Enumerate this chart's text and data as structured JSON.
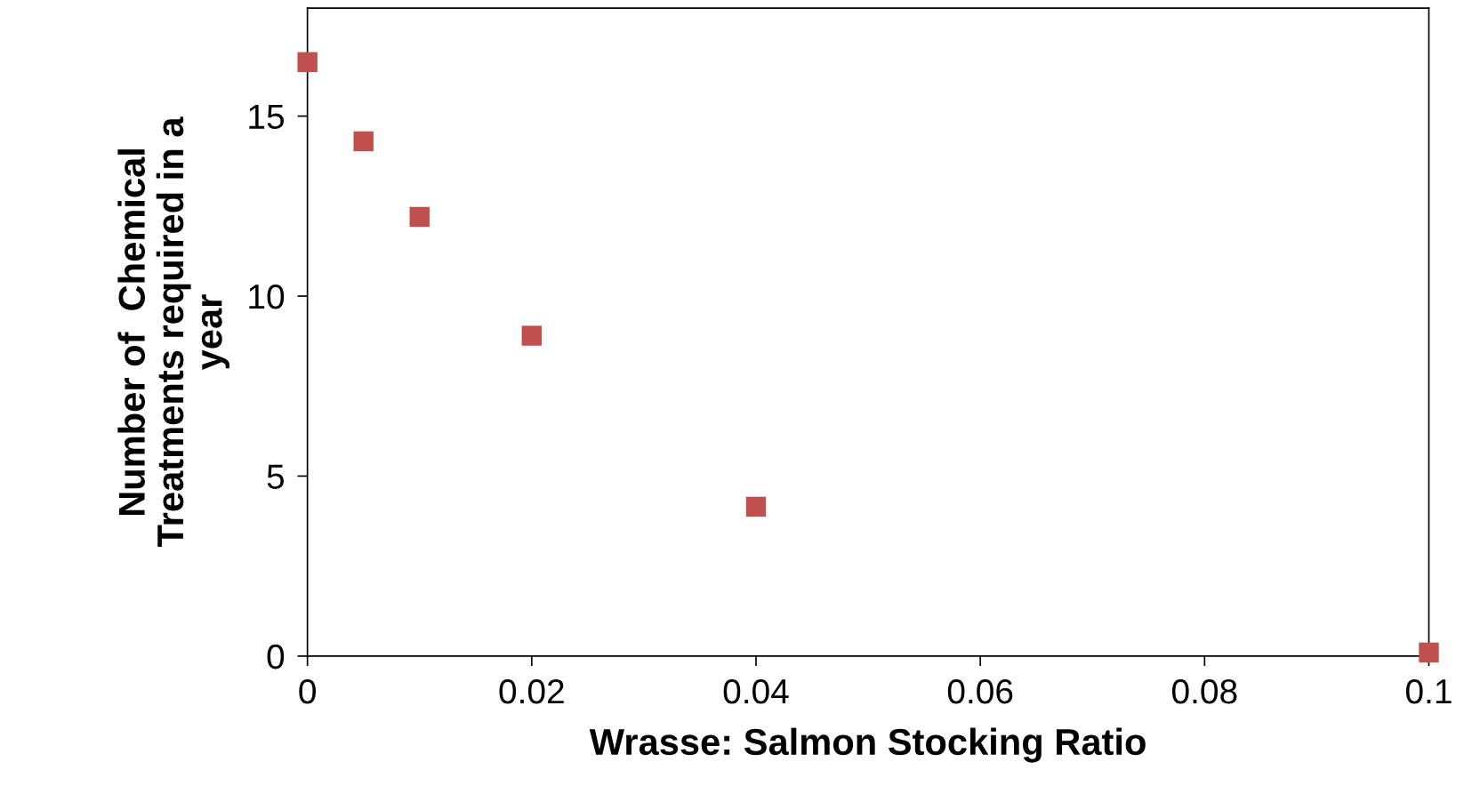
{
  "chart_data": {
    "type": "scatter",
    "xlabel": "Wrasse: Salmon Stocking Ratio",
    "ylabel": "Number of  Chemical\nTreatments required in a\nyear",
    "x": [
      0,
      0.005,
      0.01,
      0.02,
      0.04,
      0.1
    ],
    "series": [
      {
        "color": "#c0504d",
        "values": [
          16.5,
          14.3,
          12.2,
          8.9,
          4.15,
          0.1
        ]
      }
    ],
    "xlim": [
      0,
      0.1
    ],
    "xticks": [
      0,
      0.02,
      0.04,
      0.06,
      0.08,
      0.1
    ],
    "ylim": [
      0,
      18
    ],
    "yticks": [
      0,
      5,
      10,
      15
    ],
    "marker": "square",
    "grid": false,
    "legend": false
  }
}
